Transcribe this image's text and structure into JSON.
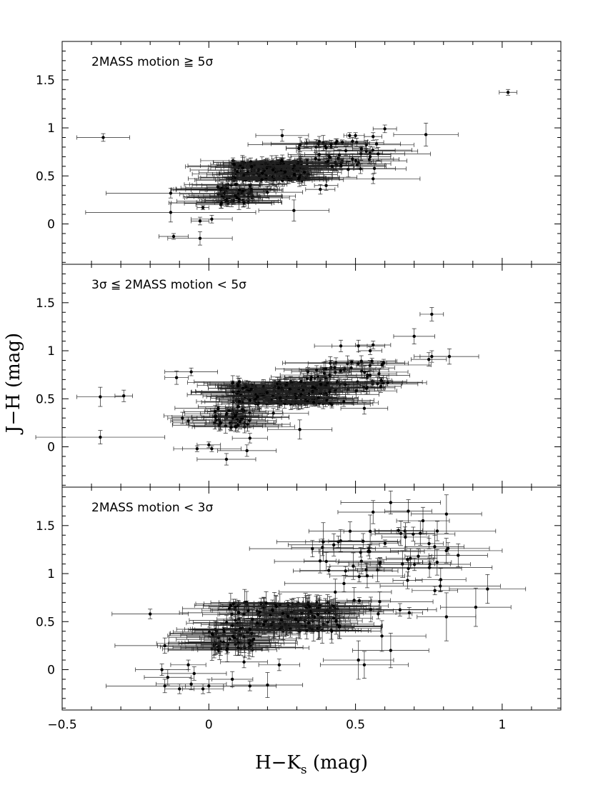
{
  "chart_data": [
    {
      "type": "scatter",
      "panel_label": "2MASS motion ≧ 5σ",
      "xlim": [
        -0.5,
        1.2
      ],
      "ylim": [
        -0.42,
        1.9
      ],
      "x_ticks": [
        "−0.5",
        "0",
        "0.5",
        "1"
      ],
      "y_ticks": [
        "0",
        "0.5",
        "1",
        "1.5"
      ],
      "x_tick_values": [
        -0.5,
        0,
        0.5,
        1
      ],
      "y_tick_values": [
        0,
        0.5,
        1,
        1.5
      ],
      "cluster": {
        "n": 280,
        "seed": 11,
        "main_x": [
          0.08,
          0.34
        ],
        "main_y": [
          0.45,
          0.66
        ],
        "tail_x": [
          0.3,
          0.58
        ],
        "tail_y": [
          0.56,
          0.86
        ],
        "bottom_x": [
          0.03,
          0.15
        ],
        "bottom_y": [
          0.2,
          0.42
        ],
        "xerr": [
          0.03,
          0.18
        ],
        "yerr": [
          0.02,
          0.08
        ]
      },
      "points": [
        {
          "x": -0.36,
          "y": 0.9,
          "xerr": 0.09,
          "yerr": 0.04
        },
        {
          "x": 1.02,
          "y": 1.37,
          "xerr": 0.03,
          "yerr": 0.03
        },
        {
          "x": 0.6,
          "y": 0.99,
          "xerr": 0.04,
          "yerr": 0.04
        },
        {
          "x": 0.74,
          "y": 0.93,
          "xerr": 0.11,
          "yerr": 0.12
        },
        {
          "x": 0.25,
          "y": 0.92,
          "xerr": 0.09,
          "yerr": 0.06
        },
        {
          "x": 0.48,
          "y": 0.92,
          "xerr": 0.02,
          "yerr": 0.03
        },
        {
          "x": 0.5,
          "y": 0.92,
          "xerr": 0.03,
          "yerr": 0.03
        },
        {
          "x": 0.56,
          "y": 0.91,
          "xerr": 0.03,
          "yerr": 0.04
        },
        {
          "x": -0.13,
          "y": 0.32,
          "xerr": 0.22,
          "yerr": 0.05
        },
        {
          "x": -0.13,
          "y": 0.12,
          "xerr": 0.29,
          "yerr": 0.1
        },
        {
          "x": -0.12,
          "y": -0.13,
          "xerr": 0.05,
          "yerr": 0.03
        },
        {
          "x": -0.02,
          "y": 0.17,
          "xerr": 0.02,
          "yerr": 0.02
        },
        {
          "x": 0.01,
          "y": 0.05,
          "xerr": 0.07,
          "yerr": 0.04
        },
        {
          "x": -0.03,
          "y": 0.03,
          "xerr": 0.03,
          "yerr": 0.04
        },
        {
          "x": -0.03,
          "y": -0.15,
          "xerr": 0.11,
          "yerr": 0.07
        },
        {
          "x": 0.29,
          "y": 0.14,
          "xerr": 0.12,
          "yerr": 0.11
        },
        {
          "x": 0.56,
          "y": 0.47,
          "xerr": 0.16,
          "yerr": 0.05
        },
        {
          "x": 0.4,
          "y": 0.4,
          "xerr": 0.04,
          "yerr": 0.05
        },
        {
          "x": 0.38,
          "y": 0.36,
          "xerr": 0.05,
          "yerr": 0.05
        },
        {
          "x": 0.2,
          "y": 0.33,
          "xerr": 0.12,
          "yerr": 0.06
        },
        {
          "x": 0.12,
          "y": 0.22,
          "xerr": 0.04,
          "yerr": 0.04
        },
        {
          "x": 0.55,
          "y": 0.7,
          "xerr": 0.07,
          "yerr": 0.05
        },
        {
          "x": 0.52,
          "y": 0.78,
          "xerr": 0.03,
          "yerr": 0.03
        },
        {
          "x": 0.49,
          "y": 0.86,
          "xerr": 0.04,
          "yerr": 0.04
        },
        {
          "x": 0.42,
          "y": 0.6,
          "xerr": 0.18,
          "yerr": 0.04
        }
      ]
    },
    {
      "type": "scatter",
      "panel_label": "3σ ≦ 2MASS motion < 5σ",
      "xlim": [
        -0.5,
        1.2
      ],
      "ylim": [
        -0.42,
        1.9
      ],
      "x_ticks": [
        "−0.5",
        "0",
        "0.5",
        "1"
      ],
      "y_ticks": [
        "0",
        "0.5",
        "1",
        "1.5"
      ],
      "x_tick_values": [
        -0.5,
        0,
        0.5,
        1
      ],
      "y_tick_values": [
        0,
        0.5,
        1,
        1.5
      ],
      "cluster": {
        "n": 300,
        "seed": 23,
        "main_x": [
          0.08,
          0.42
        ],
        "main_y": [
          0.44,
          0.68
        ],
        "tail_x": [
          0.32,
          0.6
        ],
        "tail_y": [
          0.58,
          0.9
        ],
        "bottom_x": [
          0.02,
          0.14
        ],
        "bottom_y": [
          0.2,
          0.42
        ],
        "xerr": [
          0.03,
          0.18
        ],
        "yerr": [
          0.02,
          0.08
        ]
      },
      "points": [
        {
          "x": -0.37,
          "y": 0.52,
          "xerr": 0.08,
          "yerr": 0.1
        },
        {
          "x": -0.29,
          "y": 0.53,
          "xerr": 0.03,
          "yerr": 0.06
        },
        {
          "x": -0.37,
          "y": 0.1,
          "xerr": 0.22,
          "yerr": 0.07
        },
        {
          "x": 0.76,
          "y": 1.38,
          "xerr": 0.04,
          "yerr": 0.07
        },
        {
          "x": 0.7,
          "y": 1.15,
          "xerr": 0.07,
          "yerr": 0.08
        },
        {
          "x": 0.75,
          "y": 0.91,
          "xerr": 0.06,
          "yerr": 0.07
        },
        {
          "x": 0.82,
          "y": 0.94,
          "xerr": 0.1,
          "yerr": 0.08
        },
        {
          "x": 0.76,
          "y": 0.94,
          "xerr": 0.06,
          "yerr": 0.06
        },
        {
          "x": 0.56,
          "y": 1.06,
          "xerr": 0.06,
          "yerr": 0.04
        },
        {
          "x": 0.51,
          "y": 1.05,
          "xerr": 0.09,
          "yerr": 0.06
        },
        {
          "x": 0.55,
          "y": 1.0,
          "xerr": 0.04,
          "yerr": 0.04
        },
        {
          "x": 0.45,
          "y": 1.05,
          "xerr": 0.09,
          "yerr": 0.06
        },
        {
          "x": -0.11,
          "y": 0.72,
          "xerr": 0.04,
          "yerr": 0.07
        },
        {
          "x": -0.06,
          "y": 0.78,
          "xerr": 0.09,
          "yerr": 0.04
        },
        {
          "x": -0.09,
          "y": 0.3,
          "xerr": 0.05,
          "yerr": 0.06
        },
        {
          "x": -0.07,
          "y": 0.27,
          "xerr": 0.06,
          "yerr": 0.04
        },
        {
          "x": -0.04,
          "y": -0.02,
          "xerr": 0.08,
          "yerr": 0.03
        },
        {
          "x": 0.0,
          "y": 0.02,
          "xerr": 0.04,
          "yerr": 0.03
        },
        {
          "x": 0.01,
          "y": -0.02,
          "xerr": 0.1,
          "yerr": 0.03
        },
        {
          "x": 0.06,
          "y": -0.13,
          "xerr": 0.1,
          "yerr": 0.06
        },
        {
          "x": 0.13,
          "y": -0.04,
          "xerr": 0.1,
          "yerr": 0.06
        },
        {
          "x": 0.14,
          "y": 0.09,
          "xerr": 0.06,
          "yerr": 0.05
        },
        {
          "x": 0.31,
          "y": 0.18,
          "xerr": 0.11,
          "yerr": 0.1
        },
        {
          "x": 0.46,
          "y": 0.47,
          "xerr": 0.09,
          "yerr": 0.05
        },
        {
          "x": 0.53,
          "y": 0.4,
          "xerr": 0.08,
          "yerr": 0.06
        },
        {
          "x": 0.61,
          "y": 0.67,
          "xerr": 0.05,
          "yerr": 0.04
        },
        {
          "x": 0.58,
          "y": 0.76,
          "xerr": 0.06,
          "yerr": 0.05
        },
        {
          "x": 0.22,
          "y": 0.35,
          "xerr": 0.12,
          "yerr": 0.05
        }
      ]
    },
    {
      "type": "scatter",
      "panel_label": "2MASS motion < 3σ",
      "xlim": [
        -0.5,
        1.2
      ],
      "ylim": [
        -0.42,
        1.9
      ],
      "x_ticks": [
        "−0.5",
        "0",
        "0.5",
        "1"
      ],
      "y_ticks": [
        "0",
        "0.5",
        "1",
        "1.5"
      ],
      "x_tick_values": [
        -0.5,
        0,
        0.5,
        1
      ],
      "y_tick_values": [
        0,
        0.5,
        1,
        1.5
      ],
      "xlabel": "H−Ks (mag)",
      "cluster": {
        "n": 260,
        "seed": 37,
        "main_x": [
          0.06,
          0.45
        ],
        "main_y": [
          0.4,
          0.7
        ],
        "tail_x": [
          0.35,
          0.82
        ],
        "tail_y": [
          0.55,
          1.45
        ],
        "bottom_x": [
          0.0,
          0.16
        ],
        "bottom_y": [
          0.2,
          0.42
        ],
        "xerr": [
          0.04,
          0.22
        ],
        "yerr": [
          0.03,
          0.14
        ]
      },
      "points": [
        {
          "x": 0.62,
          "y": 1.74,
          "xerr": 0.17,
          "yerr": 0.12
        },
        {
          "x": 0.56,
          "y": 1.64,
          "xerr": 0.12,
          "yerr": 0.12
        },
        {
          "x": 0.68,
          "y": 1.65,
          "xerr": 0.08,
          "yerr": 0.12
        },
        {
          "x": 0.73,
          "y": 1.55,
          "xerr": 0.09,
          "yerr": 0.14
        },
        {
          "x": 0.81,
          "y": 1.62,
          "xerr": 0.12,
          "yerr": 0.2
        },
        {
          "x": 0.95,
          "y": 0.84,
          "xerr": 0.13,
          "yerr": 0.15
        },
        {
          "x": 0.91,
          "y": 0.65,
          "xerr": 0.12,
          "yerr": 0.2
        },
        {
          "x": 0.77,
          "y": 1.28,
          "xerr": 0.1,
          "yerr": 0.12
        },
        {
          "x": 0.67,
          "y": 1.38,
          "xerr": 0.08,
          "yerr": 0.15
        },
        {
          "x": 0.39,
          "y": 1.33,
          "xerr": 0.06,
          "yerr": 0.2
        },
        {
          "x": 0.85,
          "y": 1.19,
          "xerr": 0.1,
          "yerr": 0.12
        },
        {
          "x": 0.55,
          "y": 1.44,
          "xerr": 0.09,
          "yerr": 0.17
        },
        {
          "x": 0.66,
          "y": 1.1,
          "xerr": 0.11,
          "yerr": 0.14
        },
        {
          "x": 0.81,
          "y": 0.55,
          "xerr": 0.1,
          "yerr": 0.25
        },
        {
          "x": 0.51,
          "y": 0.1,
          "xerr": 0.12,
          "yerr": 0.2
        },
        {
          "x": 0.53,
          "y": 0.05,
          "xerr": 0.15,
          "yerr": 0.14
        },
        {
          "x": 0.62,
          "y": 0.2,
          "xerr": 0.13,
          "yerr": 0.18
        },
        {
          "x": 0.59,
          "y": 0.35,
          "xerr": 0.15,
          "yerr": 0.16
        },
        {
          "x": -0.2,
          "y": 0.58,
          "xerr": 0.13,
          "yerr": 0.05
        },
        {
          "x": -0.15,
          "y": 0.25,
          "xerr": 0.17,
          "yerr": 0.08
        },
        {
          "x": -0.15,
          "y": -0.17,
          "xerr": 0.2,
          "yerr": 0.07
        },
        {
          "x": -0.14,
          "y": -0.08,
          "xerr": 0.08,
          "yerr": 0.08
        },
        {
          "x": -0.16,
          "y": 0.0,
          "xerr": 0.09,
          "yerr": 0.06
        },
        {
          "x": -0.1,
          "y": -0.2,
          "xerr": 0.05,
          "yerr": 0.05
        },
        {
          "x": -0.06,
          "y": -0.15,
          "xerr": 0.12,
          "yerr": 0.06
        },
        {
          "x": -0.02,
          "y": -0.2,
          "xerr": 0.07,
          "yerr": 0.05
        },
        {
          "x": -0.05,
          "y": -0.04,
          "xerr": 0.11,
          "yerr": 0.07
        },
        {
          "x": 0.0,
          "y": -0.17,
          "xerr": 0.08,
          "yerr": 0.07
        },
        {
          "x": 0.08,
          "y": -0.1,
          "xerr": 0.07,
          "yerr": 0.08
        },
        {
          "x": 0.14,
          "y": -0.17,
          "xerr": 0.09,
          "yerr": 0.05
        },
        {
          "x": 0.2,
          "y": -0.16,
          "xerr": 0.12,
          "yerr": 0.13
        },
        {
          "x": 0.24,
          "y": 0.05,
          "xerr": 0.07,
          "yerr": 0.06
        },
        {
          "x": 0.12,
          "y": 0.08,
          "xerr": 0.08,
          "yerr": 0.06
        },
        {
          "x": -0.07,
          "y": 0.05,
          "xerr": 0.06,
          "yerr": 0.05
        },
        {
          "x": 0.14,
          "y": 0.42,
          "xerr": 0.25,
          "yerr": 0.07
        }
      ]
    }
  ],
  "y_axis_title": "J−H (mag)",
  "x_axis_title_main": "H−K",
  "x_axis_title_sub": "s",
  "x_axis_title_unit": " (mag)"
}
